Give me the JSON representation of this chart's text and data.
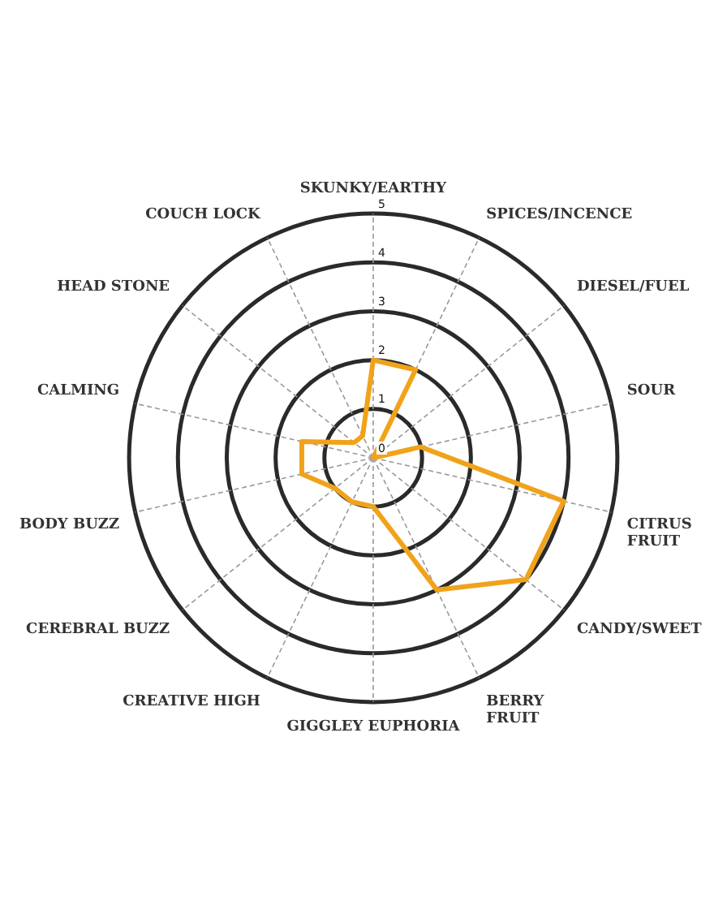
{
  "chart_data": {
    "type": "radar",
    "categories": [
      "SKUNKY/EARTHY",
      "SPICES/INCENCE",
      "DIESEL/FUEL",
      "SOUR",
      "CITRUS FRUIT",
      "CANDY/SWEET",
      "BERRY FRUIT",
      "GIGGLEY EUPHORIA",
      "CREATIVE HIGH",
      "CEREBRAL BUZZ",
      "BODY BUZZ",
      "CALMING",
      "HEAD STONE",
      "COUCH LOCK"
    ],
    "series": [
      {
        "color": "#f0a31a",
        "values": [
          2,
          2,
          0,
          1,
          4,
          4,
          3,
          1,
          1,
          1,
          1.5,
          1.5,
          0.5,
          0.5
        ]
      }
    ],
    "ylim": [
      0,
      5
    ],
    "yticks": [
      0,
      1,
      2,
      3,
      4,
      5
    ],
    "grid": true,
    "marker": "none",
    "line_style": "solid",
    "legend": false
  }
}
